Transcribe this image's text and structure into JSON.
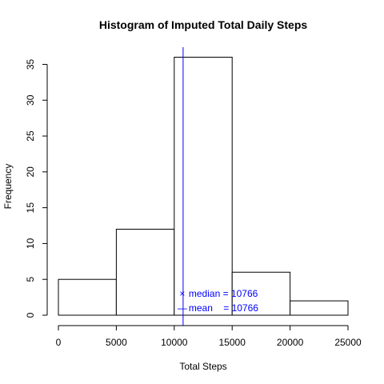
{
  "chart_data": {
    "type": "bar",
    "subtype": "histogram",
    "title": "Histogram of Imputed Total Daily Steps",
    "xlabel": "Total Steps",
    "ylabel": "Frequency",
    "bins": [
      {
        "from": 0,
        "to": 5000,
        "count": 5
      },
      {
        "from": 5000,
        "to": 10000,
        "count": 12
      },
      {
        "from": 10000,
        "to": 15000,
        "count": 36
      },
      {
        "from": 15000,
        "to": 20000,
        "count": 6
      },
      {
        "from": 20000,
        "to": 25000,
        "count": 2
      }
    ],
    "xlim": [
      0,
      25000
    ],
    "ylim": [
      0,
      36
    ],
    "x_ticks": [
      0,
      5000,
      10000,
      15000,
      20000,
      25000
    ],
    "y_ticks": [
      0,
      5,
      10,
      15,
      20,
      25,
      30,
      35
    ],
    "vline": {
      "x": 10766,
      "color": "#0000ff"
    },
    "annotations": [
      {
        "marker": "×",
        "label": "median",
        "text": "median = 10766",
        "y": 3
      },
      {
        "marker": "—",
        "label": "mean",
        "text": "mean    = 10766",
        "y": 1
      }
    ],
    "grid": false,
    "bar_fill": "#ffffff",
    "bar_stroke": "#000000",
    "accent_color": "#0000ff"
  }
}
